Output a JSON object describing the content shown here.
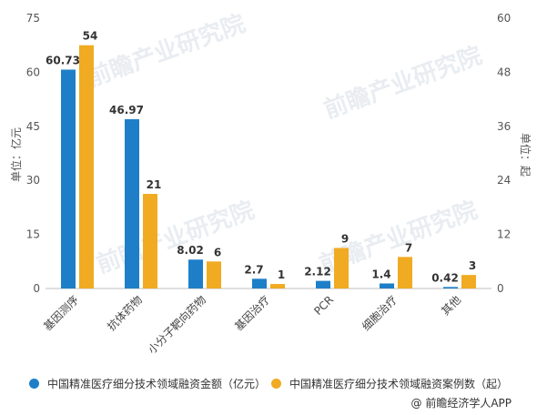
{
  "chart_data": {
    "type": "bar",
    "categories": [
      "基因测序",
      "抗体药物",
      "小分子靶向药物",
      "基因治疗",
      "PCR",
      "细胞治疗",
      "其他"
    ],
    "series": [
      {
        "name": "中国精准医疗细分技术领域融资金额（亿元）",
        "axis": "left",
        "color": "#1e7fc8",
        "values": [
          60.73,
          46.97,
          8.02,
          2.7,
          2.12,
          1.4,
          0.42
        ],
        "labels": [
          "60.73",
          "46.97",
          "8.02",
          "2.7",
          "2.12",
          "1.4",
          "0.42"
        ]
      },
      {
        "name": "中国精准医疗细分技术领域融资案例数（起）",
        "axis": "right",
        "color": "#f0ab22",
        "values": [
          54,
          21,
          6,
          1,
          9,
          7,
          3
        ],
        "labels": [
          "54",
          "21",
          "6",
          "1",
          "9",
          "7",
          "3"
        ]
      }
    ],
    "y_left": {
      "label": "单位：亿元",
      "ylim": [
        0,
        75
      ],
      "ticks": [
        "0",
        "15",
        "30",
        "45",
        "60",
        "75"
      ]
    },
    "y_right": {
      "label": "单位：起",
      "ylim": [
        0,
        60
      ],
      "ticks": [
        "0",
        "12",
        "24",
        "36",
        "48",
        "60"
      ]
    },
    "grid": false,
    "legend_position": "bottom-left"
  },
  "credit": "@ 前瞻经济学人APP",
  "watermark": "前瞻产业研究院"
}
